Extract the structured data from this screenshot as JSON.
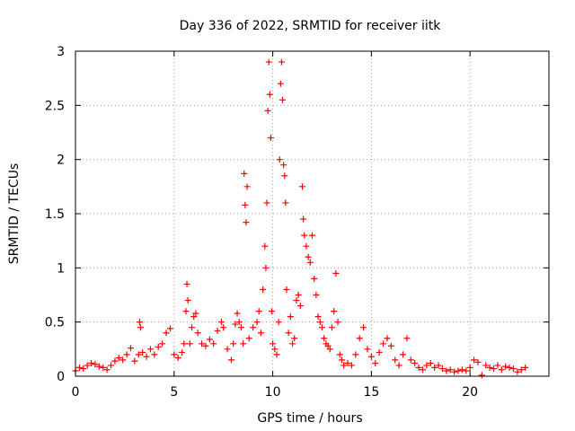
{
  "chart_data": {
    "type": "scatter",
    "title": "Day 336 of 2022, SRMTID for receiver iitk",
    "xlabel": "GPS time / hours",
    "ylabel": "SRMTID / TECUs",
    "xlim": [
      0,
      24
    ],
    "ylim": [
      0,
      3
    ],
    "xticks": [
      0,
      5,
      10,
      15,
      20
    ],
    "xtick_labels": [
      "0",
      "5",
      "10",
      "15",
      "20"
    ],
    "yticks": [
      0,
      0.5,
      1,
      1.5,
      2,
      2.5,
      3
    ],
    "ytick_labels": [
      "0",
      "0.5",
      "1",
      "1.5",
      "2",
      "2.5",
      "3"
    ],
    "grid": true,
    "marker": "+",
    "color": "#ff0000",
    "series": [
      {
        "name": "SRMTID",
        "x": [
          0.0,
          0.2,
          0.4,
          0.6,
          0.8,
          1.0,
          1.2,
          1.4,
          1.6,
          1.8,
          2.0,
          2.2,
          2.4,
          2.6,
          2.8,
          3.0,
          3.2,
          3.25,
          3.3,
          3.4,
          3.6,
          3.8,
          4.0,
          4.2,
          4.4,
          4.6,
          4.8,
          5.0,
          5.2,
          5.4,
          5.5,
          5.6,
          5.65,
          5.7,
          5.8,
          5.9,
          6.0,
          6.1,
          6.2,
          6.4,
          6.6,
          6.8,
          7.0,
          7.2,
          7.4,
          7.5,
          7.7,
          7.9,
          8.0,
          8.1,
          8.2,
          8.3,
          8.4,
          8.5,
          8.55,
          8.6,
          8.65,
          8.7,
          8.8,
          9.0,
          9.2,
          9.3,
          9.4,
          9.5,
          9.6,
          9.65,
          9.7,
          9.75,
          9.8,
          9.85,
          9.9,
          9.95,
          10.0,
          10.1,
          10.2,
          10.3,
          10.35,
          10.4,
          10.45,
          10.5,
          10.55,
          10.6,
          10.65,
          10.7,
          10.8,
          10.9,
          11.0,
          11.1,
          11.2,
          11.3,
          11.4,
          11.5,
          11.55,
          11.6,
          11.7,
          11.8,
          11.9,
          12.0,
          12.1,
          12.2,
          12.3,
          12.4,
          12.5,
          12.6,
          12.7,
          12.8,
          12.9,
          13.0,
          13.1,
          13.2,
          13.3,
          13.4,
          13.5,
          13.6,
          13.8,
          14.0,
          14.2,
          14.4,
          14.6,
          14.8,
          15.0,
          15.2,
          15.4,
          15.6,
          15.8,
          16.0,
          16.2,
          16.4,
          16.6,
          16.8,
          17.0,
          17.2,
          17.4,
          17.6,
          17.8,
          18.0,
          18.2,
          18.4,
          18.6,
          18.8,
          19.0,
          19.2,
          19.4,
          19.6,
          19.8,
          20.0,
          20.2,
          20.4,
          20.6,
          20.8,
          21.0,
          21.2,
          21.4,
          21.6,
          21.8,
          22.0,
          22.2,
          22.4,
          22.6,
          22.8
        ],
        "y": [
          0.05,
          0.08,
          0.07,
          0.1,
          0.12,
          0.11,
          0.09,
          0.08,
          0.06,
          0.1,
          0.14,
          0.17,
          0.15,
          0.2,
          0.26,
          0.14,
          0.2,
          0.5,
          0.45,
          0.22,
          0.18,
          0.25,
          0.2,
          0.27,
          0.3,
          0.4,
          0.44,
          0.2,
          0.17,
          0.22,
          0.3,
          0.6,
          0.85,
          0.7,
          0.3,
          0.45,
          0.55,
          0.58,
          0.4,
          0.3,
          0.28,
          0.34,
          0.3,
          0.42,
          0.5,
          0.45,
          0.25,
          0.15,
          0.3,
          0.48,
          0.58,
          0.5,
          0.45,
          0.3,
          1.87,
          1.58,
          1.42,
          1.75,
          0.35,
          0.45,
          0.5,
          0.6,
          0.4,
          0.8,
          1.2,
          1.0,
          1.6,
          2.45,
          2.9,
          2.6,
          2.2,
          0.6,
          0.3,
          0.25,
          0.2,
          0.5,
          2.0,
          2.7,
          2.9,
          2.55,
          1.95,
          1.85,
          1.6,
          0.8,
          0.4,
          0.55,
          0.3,
          0.35,
          0.7,
          0.75,
          0.65,
          1.75,
          1.45,
          1.3,
          1.2,
          1.1,
          1.05,
          1.3,
          0.9,
          0.75,
          0.55,
          0.5,
          0.45,
          0.35,
          0.3,
          0.28,
          0.25,
          0.45,
          0.6,
          0.95,
          0.5,
          0.2,
          0.15,
          0.1,
          0.12,
          0.1,
          0.2,
          0.35,
          0.45,
          0.25,
          0.18,
          0.12,
          0.22,
          0.3,
          0.35,
          0.28,
          0.15,
          0.1,
          0.2,
          0.35,
          0.15,
          0.12,
          0.08,
          0.06,
          0.1,
          0.12,
          0.08,
          0.1,
          0.07,
          0.05,
          0.06,
          0.04,
          0.05,
          0.06,
          0.05,
          0.08,
          0.15,
          0.13,
          0.01,
          0.1,
          0.08,
          0.07,
          0.1,
          0.06,
          0.09,
          0.08,
          0.07,
          0.04,
          0.06,
          0.08
        ]
      }
    ]
  }
}
